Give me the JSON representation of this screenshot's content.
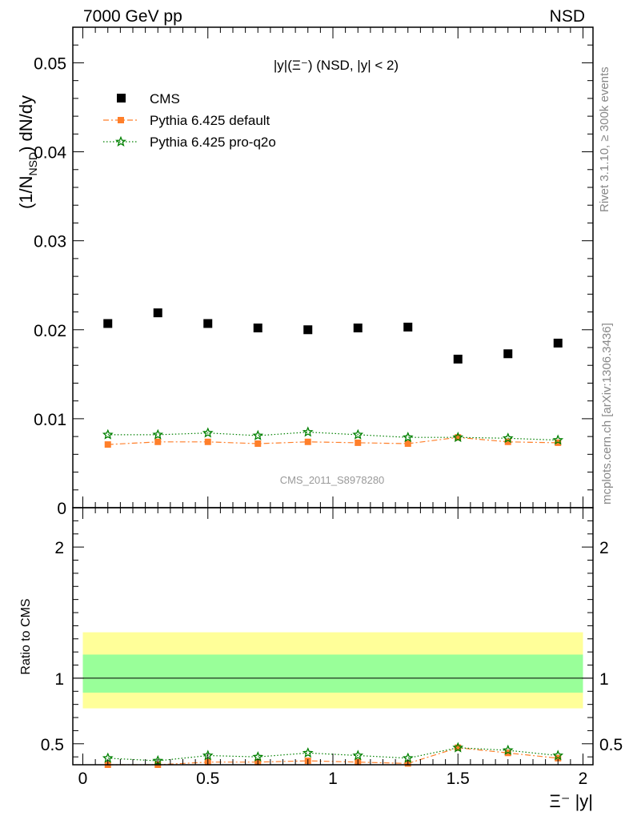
{
  "header": {
    "left": "7000 GeV pp",
    "right": "NSD"
  },
  "side_labels": {
    "rivet": "Rivet 3.1.10, ≥ 300k events",
    "mcplots": "mcplots.cern.ch [arXiv:1306.3436]"
  },
  "watermark": "CMS_2011_S8978280",
  "colors": {
    "cms": "#000000",
    "default": "#ff7f2a",
    "proq2o": "#008000",
    "band_inner": "#99ff99",
    "band_outer": "#ffff99"
  },
  "chart_data": [
    {
      "type": "scatter",
      "panel": "main",
      "title": "|y|(Ξ⁻) (NSD, |y| < 2)",
      "ylabel": "(1/N_NSD) dN/dy",
      "xlim": [
        -0.04,
        2.04
      ],
      "ylim": [
        0,
        0.054
      ],
      "yticks": [
        0,
        0.01,
        0.02,
        0.03,
        0.04,
        0.05
      ],
      "ytick_labels": [
        "0",
        "0.01",
        "0.02",
        "0.03",
        "0.04",
        "0.05"
      ],
      "legend_position": "top-left",
      "x": [
        0.1,
        0.3,
        0.5,
        0.7,
        0.9,
        1.1,
        1.3,
        1.5,
        1.7,
        1.9
      ],
      "series": [
        {
          "name": "CMS",
          "marker": "square",
          "values": [
            0.0207,
            0.0219,
            0.0207,
            0.0202,
            0.02,
            0.0202,
            0.0203,
            0.0167,
            0.0173,
            0.0185
          ]
        },
        {
          "name": "Pythia 6.425 default",
          "marker": "square-small",
          "line": "dash-dot",
          "values": [
            0.0071,
            0.0074,
            0.0074,
            0.0072,
            0.0074,
            0.0073,
            0.0072,
            0.0079,
            0.0074,
            0.0073
          ]
        },
        {
          "name": "Pythia 6.425 pro-q2o",
          "marker": "star",
          "line": "dotted",
          "values": [
            0.0082,
            0.0082,
            0.0084,
            0.0081,
            0.0085,
            0.0082,
            0.0079,
            0.0079,
            0.0078,
            0.0076
          ]
        }
      ]
    },
    {
      "type": "line",
      "panel": "ratio",
      "ylabel": "Ratio to CMS",
      "xlabel": "Ξ⁻ |y|",
      "xlim": [
        -0.04,
        2.04
      ],
      "ylim": [
        0.34,
        2.3
      ],
      "xticks": [
        0,
        0.5,
        1,
        1.5,
        2
      ],
      "xtick_labels": [
        "0",
        "0.5",
        "1",
        "1.5",
        "2"
      ],
      "yticks": [
        0.5,
        1,
        2
      ],
      "ytick_labels": [
        "0.5",
        "1",
        "2"
      ],
      "band_x": [
        0.0,
        2.0
      ],
      "band_inner": [
        0.89,
        1.18
      ],
      "band_outer": [
        0.77,
        1.35
      ],
      "x": [
        0.1,
        0.3,
        0.5,
        0.7,
        0.9,
        1.1,
        1.3,
        1.5,
        1.7,
        1.9
      ],
      "series": [
        {
          "name": "Pythia 6.425 default",
          "values": [
            0.34,
            0.34,
            0.36,
            0.36,
            0.37,
            0.36,
            0.35,
            0.47,
            0.43,
            0.39
          ]
        },
        {
          "name": "Pythia 6.425 pro-q2o",
          "values": [
            0.39,
            0.37,
            0.41,
            0.4,
            0.43,
            0.41,
            0.39,
            0.47,
            0.45,
            0.41
          ]
        }
      ]
    }
  ]
}
